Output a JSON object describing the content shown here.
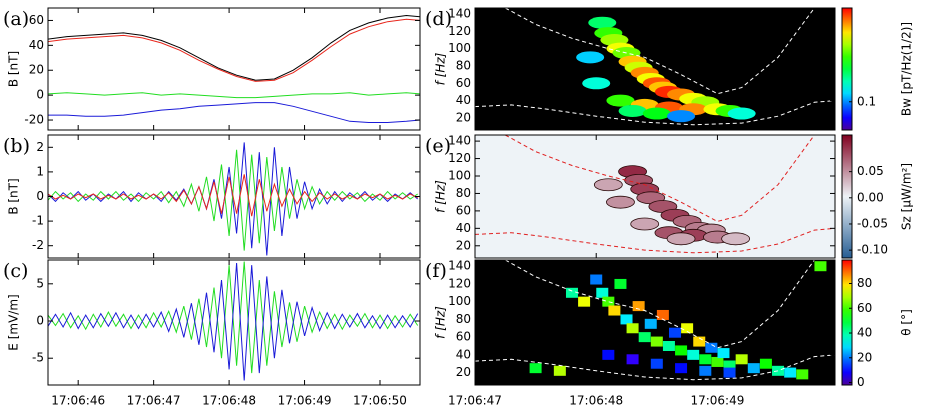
{
  "chart_data": [
    {
      "type": "line",
      "panel_label": "(a)",
      "ylabel": "B [nT]",
      "x": [
        45.6,
        45.85,
        46.1,
        46.35,
        46.6,
        46.85,
        47.1,
        47.35,
        47.6,
        47.85,
        48.1,
        48.35,
        48.6,
        48.85,
        49.1,
        49.35,
        49.6,
        49.85,
        50.1,
        50.35,
        50.53
      ],
      "xlim": [
        45.6,
        50.53
      ],
      "ylim": [
        -28,
        70
      ],
      "yticks": [
        -20,
        0,
        20,
        40,
        60
      ],
      "series": [
        {
          "color": "#000000",
          "values": [
            45,
            47,
            48,
            49,
            50,
            48,
            44,
            38,
            30,
            22,
            16,
            12,
            13,
            20,
            30,
            42,
            52,
            58,
            62,
            64,
            63
          ]
        },
        {
          "color": "#e8261c",
          "values": [
            43,
            45,
            46,
            47,
            48,
            46,
            42,
            36,
            28,
            21,
            15,
            11,
            12,
            18,
            28,
            39,
            49,
            55,
            59,
            61,
            60
          ]
        },
        {
          "color": "#22dd22",
          "values": [
            1,
            2,
            1,
            0,
            1,
            2,
            0,
            1,
            0,
            -1,
            -2,
            -2,
            -1,
            0,
            1,
            1,
            2,
            0,
            1,
            2,
            1
          ]
        },
        {
          "color": "#1a1ad8",
          "values": [
            -16,
            -16,
            -17,
            -17,
            -16,
            -14,
            -12,
            -11,
            -9,
            -8,
            -7,
            -6,
            -6,
            -9,
            -13,
            -17,
            -21,
            -22,
            -22,
            -21,
            -20
          ]
        }
      ]
    },
    {
      "type": "line",
      "panel_label": "(b)",
      "ylabel": "B [nT]",
      "x": [
        45.6,
        45.7,
        45.8,
        45.9,
        46.0,
        46.1,
        46.2,
        46.3,
        46.4,
        46.5,
        46.6,
        46.7,
        46.8,
        46.9,
        47.0,
        47.1,
        47.2,
        47.3,
        47.4,
        47.5,
        47.6,
        47.7,
        47.8,
        47.9,
        48.0,
        48.1,
        48.2,
        48.3,
        48.4,
        48.5,
        48.6,
        48.7,
        48.8,
        48.9,
        49.0,
        49.1,
        49.2,
        49.3,
        49.4,
        49.5,
        49.6,
        49.7,
        49.8,
        49.9,
        50.0,
        50.1,
        50.2,
        50.3,
        50.4,
        50.5
      ],
      "xlim": [
        45.6,
        50.53
      ],
      "ylim": [
        -2.5,
        2.5
      ],
      "yticks": [
        -2,
        -1,
        0,
        1,
        2
      ],
      "series": [
        {
          "color": "#1a1ad8",
          "values": [
            0.1,
            -0.2,
            0.15,
            -0.1,
            0.2,
            -0.15,
            0.1,
            -0.2,
            0.1,
            -0.1,
            0.2,
            -0.2,
            0.15,
            -0.1,
            0.1,
            -0.2,
            0.2,
            -0.15,
            0.3,
            -0.3,
            0.4,
            -0.5,
            0.7,
            -0.9,
            1.2,
            -1.5,
            2.2,
            -2.1,
            1.8,
            -2.4,
            2.0,
            -1.6,
            1.2,
            -0.9,
            0.6,
            -0.5,
            0.3,
            -0.3,
            0.2,
            -0.2,
            0.15,
            -0.1,
            0.2,
            -0.15,
            0.1,
            -0.2,
            0.1,
            -0.1,
            0.15,
            -0.1
          ]
        },
        {
          "color": "#22dd22",
          "values": [
            -0.15,
            0.2,
            -0.1,
            0.15,
            -0.2,
            0.1,
            -0.15,
            0.2,
            -0.1,
            0.2,
            -0.15,
            0.1,
            -0.2,
            0.15,
            -0.1,
            0.2,
            -0.25,
            0.2,
            -0.4,
            0.5,
            -0.6,
            0.8,
            -1.0,
            1.3,
            -1.6,
            1.9,
            -2.2,
            1.7,
            -1.9,
            1.6,
            -1.4,
            1.2,
            -0.9,
            0.7,
            -0.5,
            0.4,
            -0.3,
            0.2,
            -0.15,
            0.2,
            -0.1,
            0.15,
            -0.2,
            0.1,
            -0.15,
            0.2,
            -0.1,
            0.15,
            -0.1,
            0.1
          ]
        },
        {
          "color": "#e8261c",
          "values": [
            0.1,
            -0.1,
            0.05,
            -0.1,
            0.1,
            -0.05,
            0.1,
            -0.1,
            0.05,
            -0.1,
            0.1,
            -0.1,
            0.05,
            -0.1,
            0.1,
            -0.1,
            0.15,
            -0.2,
            0.25,
            -0.3,
            0.4,
            -0.5,
            0.6,
            -0.7,
            0.8,
            -0.7,
            0.9,
            -0.8,
            0.7,
            -0.6,
            0.5,
            -0.4,
            0.3,
            -0.3,
            0.2,
            -0.2,
            0.15,
            -0.1,
            0.1,
            -0.1,
            0.05,
            -0.1,
            0.1,
            -0.05,
            0.1,
            -0.1,
            0.05,
            -0.1,
            0.1,
            -0.05
          ]
        }
      ]
    },
    {
      "type": "line",
      "panel_label": "(c)",
      "ylabel": "E [mV/m]",
      "x": [
        45.6,
        45.7,
        45.8,
        45.9,
        46.0,
        46.1,
        46.2,
        46.3,
        46.4,
        46.5,
        46.6,
        46.7,
        46.8,
        46.9,
        47.0,
        47.1,
        47.2,
        47.3,
        47.4,
        47.5,
        47.6,
        47.7,
        47.8,
        47.9,
        48.0,
        48.1,
        48.2,
        48.3,
        48.4,
        48.5,
        48.6,
        48.7,
        48.8,
        48.9,
        49.0,
        49.1,
        49.2,
        49.3,
        49.4,
        49.5,
        49.6,
        49.7,
        49.8,
        49.9,
        50.0,
        50.1,
        50.2,
        50.3,
        50.4,
        50.5
      ],
      "xlim": [
        45.6,
        50.53
      ],
      "ylim": [
        -8.6,
        8.2
      ],
      "yticks": [
        -5,
        0,
        5
      ],
      "xticks": [
        {
          "value": 46,
          "label": "17:06:46"
        },
        {
          "value": 47,
          "label": "17:06:47"
        },
        {
          "value": 48,
          "label": "17:06:48"
        },
        {
          "value": 49,
          "label": "17:06:49"
        },
        {
          "value": 50,
          "label": "17:06:50"
        }
      ],
      "series": [
        {
          "color": "#22dd22",
          "values": [
            0.8,
            -0.6,
            1.0,
            -0.9,
            0.7,
            -1.1,
            0.9,
            -0.8,
            1.2,
            -0.7,
            0.9,
            -1.0,
            0.8,
            -0.9,
            1.1,
            -0.8,
            1.3,
            -1.5,
            2.0,
            -2.5,
            3.0,
            -3.5,
            4.5,
            -5.0,
            7.5,
            -6.0,
            8.0,
            -7.0,
            5.5,
            -6.0,
            4.0,
            -3.5,
            2.5,
            -2.8,
            2.0,
            -1.5,
            1.2,
            -1.0,
            0.9,
            -1.1,
            0.8,
            -0.7,
            1.0,
            -0.9,
            0.8,
            -1.0,
            0.7,
            -0.8,
            0.9,
            -0.6
          ]
        },
        {
          "color": "#1a1ad8",
          "values": [
            -0.7,
            0.9,
            -0.8,
            1.1,
            -1.0,
            0.8,
            -0.9,
            1.0,
            -0.7,
            1.1,
            -0.9,
            0.8,
            -1.0,
            0.9,
            -0.8,
            1.2,
            -1.4,
            1.6,
            -2.2,
            2.4,
            -3.2,
            3.8,
            -4.2,
            5.5,
            -6.5,
            7.8,
            -8.0,
            7.5,
            -7.0,
            6.0,
            -5.0,
            4.2,
            -3.0,
            2.6,
            -2.0,
            1.8,
            -1.3,
            1.1,
            -1.0,
            0.9,
            -0.8,
            1.0,
            -0.9,
            0.7,
            -1.0,
            0.8,
            -0.9,
            0.7,
            -0.8,
            1.0
          ]
        }
      ]
    },
    {
      "type": "heatmap",
      "panel_label": "(d)",
      "ylabel": "f [Hz]",
      "background": "#000000",
      "colormap": "rainbow",
      "cell": "ellipse",
      "xlim": [
        47,
        49.97
      ],
      "ylim": [
        6,
        147
      ],
      "yticks": [
        20,
        40,
        60,
        80,
        100,
        120,
        140
      ],
      "clim": [
        0.05,
        1
      ],
      "clog": true,
      "cticks": [
        0.1
      ],
      "clabel": "Bw [pT/Hz(1/2)]",
      "clabel_color": "#000000",
      "cells": {
        "x": [
          48.05,
          48.1,
          48.15,
          48.2,
          48.25,
          48.3,
          48.35,
          48.4,
          48.45,
          48.5,
          48.55,
          48.6,
          48.7,
          48.8,
          48.9,
          48.2,
          48.4,
          48.6,
          48.8,
          49.0,
          49.1,
          48.3,
          48.0,
          47.95,
          49.2,
          48.5,
          48.7
        ],
        "y": [
          130,
          118,
          110,
          100,
          95,
          85,
          78,
          72,
          65,
          60,
          55,
          50,
          47,
          42,
          38,
          40,
          35,
          32,
          30,
          30,
          28,
          28,
          60,
          90,
          25,
          25,
          22
        ],
        "values": [
          0.2,
          0.3,
          0.4,
          0.5,
          0.35,
          0.6,
          0.45,
          0.7,
          0.5,
          0.8,
          0.6,
          0.9,
          0.7,
          0.5,
          0.4,
          0.3,
          0.6,
          0.8,
          0.7,
          0.5,
          0.3,
          0.2,
          0.15,
          0.12,
          0.15,
          0.25,
          0.1
        ]
      },
      "line_color": "#ffffff",
      "lines": [
        {
          "x": [
            47.25,
            47.5,
            47.8,
            48.1,
            48.4,
            48.7,
            49.0,
            49.2,
            49.5,
            49.8
          ],
          "y": [
            147,
            128,
            112,
            100,
            90,
            70,
            48,
            55,
            90,
            147
          ]
        },
        {
          "x": [
            47,
            47.3,
            47.6,
            48.0,
            48.4,
            48.8,
            49.2,
            49.5,
            49.8,
            49.97
          ],
          "y": [
            33,
            35,
            30,
            22,
            15,
            12,
            14,
            22,
            38,
            40
          ]
        }
      ]
    },
    {
      "type": "heatmap",
      "panel_label": "(e)",
      "ylabel": "f [Hz]",
      "background": "#eef3f7",
      "colormap": "diverging",
      "cell": "ellipse",
      "xlim": [
        47,
        49.97
      ],
      "ylim": [
        6,
        147
      ],
      "yticks": [
        20,
        40,
        60,
        80,
        100,
        120,
        140
      ],
      "clim": [
        -0.115,
        0.12
      ],
      "clog": false,
      "cticks": [
        {
          "value": -0.1,
          "label": "-0.10"
        },
        -0.05,
        {
          "value": 0,
          "label": "0.00"
        },
        0.05
      ],
      "clabel": "Sz [μW/m²]",
      "clabel_color": "#7a1020",
      "cells": {
        "x": [
          48.3,
          48.35,
          48.4,
          48.45,
          48.55,
          48.65,
          48.75,
          48.85,
          48.95,
          48.6,
          48.8,
          49.0,
          48.1,
          48.2,
          48.4,
          49.15,
          48.7
        ],
        "y": [
          105,
          95,
          85,
          75,
          65,
          55,
          48,
          40,
          38,
          35,
          32,
          30,
          90,
          70,
          45,
          28,
          28
        ],
        "values": [
          0.1,
          0.08,
          0.09,
          0.07,
          0.08,
          0.09,
          0.07,
          0.06,
          0.05,
          0.08,
          0.09,
          0.06,
          0.04,
          0.05,
          0.04,
          0.03,
          0.04
        ]
      },
      "line_color": "#e02020",
      "lines": [
        {
          "x": [
            47.25,
            47.5,
            47.8,
            48.1,
            48.4,
            48.7,
            49.0,
            49.2,
            49.5,
            49.8
          ],
          "y": [
            147,
            128,
            112,
            100,
            90,
            70,
            48,
            55,
            90,
            147
          ]
        },
        {
          "x": [
            47,
            47.3,
            47.6,
            48.0,
            48.4,
            48.8,
            49.2,
            49.5,
            49.8,
            49.97
          ],
          "y": [
            33,
            35,
            30,
            22,
            15,
            12,
            14,
            22,
            38,
            40
          ]
        }
      ]
    },
    {
      "type": "heatmap",
      "panel_label": "(f)",
      "ylabel": "f [Hz]",
      "background": "#000000",
      "colormap": "rainbow",
      "cell": "rect",
      "xlim": [
        47,
        49.97
      ],
      "ylim": [
        6,
        147
      ],
      "yticks": [
        20,
        40,
        60,
        80,
        100,
        120,
        140
      ],
      "xticks": [
        {
          "value": 47,
          "label": "17:06:47"
        },
        {
          "value": 48,
          "label": "17:06:48"
        },
        {
          "value": 49,
          "label": "17:06:49"
        }
      ],
      "clim": [
        -2,
        99
      ],
      "clog": false,
      "cticks": [
        0,
        20,
        40,
        60,
        80
      ],
      "clabel": "θ [°]",
      "clabel_color": "#000000",
      "cells": {
        "x": [
          48.0,
          48.05,
          48.1,
          48.15,
          48.2,
          48.25,
          48.3,
          48.35,
          48.4,
          48.45,
          48.5,
          48.55,
          48.6,
          48.65,
          48.7,
          48.75,
          48.8,
          48.85,
          48.9,
          48.95,
          49.0,
          49.05,
          49.1,
          49.2,
          49.3,
          49.4,
          49.5,
          49.6,
          49.7,
          47.9,
          47.8,
          48.1,
          48.3,
          48.5,
          48.7,
          48.9,
          49.1,
          49.85,
          47.5,
          47.7
        ],
        "y": [
          125,
          110,
          100,
          90,
          120,
          80,
          70,
          95,
          60,
          75,
          55,
          85,
          50,
          65,
          45,
          70,
          40,
          55,
          35,
          48,
          32,
          42,
          28,
          35,
          25,
          30,
          22,
          20,
          18,
          100,
          110,
          40,
          35,
          30,
          25,
          22,
          20,
          140,
          25,
          22
        ],
        "values": [
          20,
          35,
          60,
          80,
          50,
          30,
          70,
          85,
          45,
          25,
          65,
          90,
          40,
          15,
          55,
          75,
          35,
          80,
          50,
          20,
          60,
          30,
          45,
          70,
          25,
          55,
          40,
          30,
          60,
          75,
          40,
          10,
          5,
          15,
          10,
          20,
          15,
          60,
          50,
          70
        ]
      },
      "line_color": "#ffffff",
      "lines": [
        {
          "x": [
            47.25,
            47.5,
            47.8,
            48.1,
            48.4,
            48.7,
            49.0,
            49.2,
            49.5,
            49.8
          ],
          "y": [
            147,
            128,
            112,
            100,
            90,
            70,
            48,
            55,
            90,
            147
          ]
        },
        {
          "x": [
            47,
            47.3,
            47.6,
            48.0,
            48.4,
            48.8,
            49.2,
            49.5,
            49.8,
            49.97
          ],
          "y": [
            33,
            35,
            30,
            22,
            15,
            12,
            14,
            22,
            38,
            40
          ]
        }
      ]
    }
  ]
}
